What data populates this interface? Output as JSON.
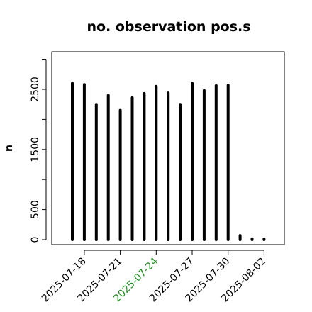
{
  "chart_data": {
    "type": "bar",
    "title": "no. observation pos.s",
    "xlabel": "",
    "ylabel": "n",
    "x": [
      "2025-07-17",
      "2025-07-18",
      "2025-07-19",
      "2025-07-20",
      "2025-07-21",
      "2025-07-22",
      "2025-07-23",
      "2025-07-24",
      "2025-07-25",
      "2025-07-26",
      "2025-07-27",
      "2025-07-28",
      "2025-07-29",
      "2025-07-30",
      "2025-07-31",
      "2025-08-01",
      "2025-08-02"
    ],
    "values": [
      2600,
      2580,
      2250,
      2400,
      2150,
      2360,
      2430,
      2550,
      2440,
      2250,
      2600,
      2480,
      2560,
      2570,
      70,
      15,
      10
    ],
    "ylim": [
      0,
      3050
    ],
    "yticks": [
      0,
      500,
      1500,
      2500
    ],
    "xticks": [
      {
        "label": "2025-07-18",
        "color": "#000000"
      },
      {
        "label": "2025-07-21",
        "color": "#000000"
      },
      {
        "label": "2025-07-24",
        "color": "#228B22"
      },
      {
        "label": "2025-07-27",
        "color": "#000000"
      },
      {
        "label": "2025-07-30",
        "color": "#000000"
      },
      {
        "label": "2025-08-02",
        "color": "#000000"
      }
    ],
    "grid": false,
    "bar_color": "#000000"
  }
}
